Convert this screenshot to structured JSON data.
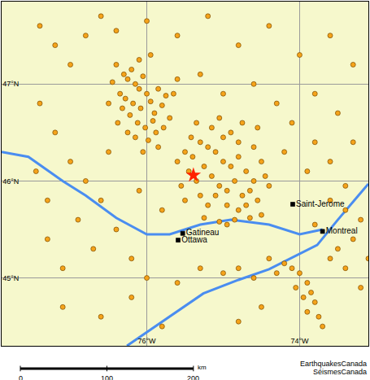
{
  "chart_data": {
    "type": "scatter",
    "xlim": [
      -77.9,
      -73.1
    ],
    "ylim": [
      44.3,
      47.85
    ],
    "xticks": [
      {
        "value": -76,
        "label": "76°W"
      },
      {
        "value": -74,
        "label": "74°W"
      }
    ],
    "yticks": [
      {
        "value": 45,
        "label": "45°N"
      },
      {
        "value": 46,
        "label": "46°N"
      },
      {
        "value": 47,
        "label": "47°N"
      }
    ],
    "grid": true,
    "series": [
      {
        "type": "line",
        "color": "#4a8df0",
        "x": [
          -77.9,
          -77.55,
          -77.1,
          -76.8,
          -76.4,
          -76.0,
          -75.7,
          -75.3,
          -74.9,
          -74.4,
          -74.0,
          -73.7
        ],
        "values": [
          46.3,
          46.25,
          46.0,
          45.85,
          45.62,
          45.45,
          45.45,
          45.55,
          45.6,
          45.55,
          45.45,
          45.5
        ]
      },
      {
        "type": "line",
        "color": "#4a8df0",
        "x": [
          -76.26,
          -75.8,
          -75.26,
          -74.8,
          -74.4,
          -73.77,
          -73.5,
          -73.23,
          -73.1
        ],
        "values": [
          44.3,
          44.55,
          44.84,
          44.98,
          45.09,
          45.34,
          45.6,
          45.85,
          45.97
        ]
      },
      {
        "type": "scatter",
        "marker": "circle",
        "color": "#f5a31a",
        "x": [
          -76.3,
          -76.25,
          -76.2,
          -76.15,
          -76.1,
          -76.05,
          -76.35,
          -76.28,
          -76.18,
          -76.08,
          -76.0,
          -75.95,
          -75.9,
          -75.85,
          -76.22,
          -76.12,
          -76.02,
          -75.92,
          -75.8,
          -75.75,
          -76.4,
          -76.45,
          -76.32,
          -76.25,
          -76.15,
          -75.98,
          -75.88,
          -75.7,
          -75.65,
          -75.6,
          -76.1,
          -75.95,
          -76.5,
          -76.38,
          -75.78,
          -76.05,
          -75.85,
          -75.5,
          -75.4,
          -75.3,
          -75.2,
          -75.1,
          -75.0,
          -74.9,
          -74.8,
          -74.7,
          -74.6,
          -75.45,
          -75.35,
          -75.25,
          -75.15,
          -75.05,
          -74.95,
          -74.85,
          -74.75,
          -74.65,
          -74.55,
          -75.55,
          -75.3,
          -75.2,
          -75.1,
          -74.95,
          -74.8,
          -74.7,
          -75.0,
          -74.9,
          -74.8,
          -74.6,
          -74.5,
          -74.45,
          -74.4,
          -75.15,
          -75.35,
          -75.05,
          -74.75,
          -74.55,
          -75.6,
          -75.5,
          -75.42,
          -74.85,
          -74.65,
          -74.5,
          -75.25,
          -75.05,
          -74.95,
          -74.1,
          -74.0,
          -73.9,
          -73.85,
          -73.8,
          -73.95,
          -74.05,
          -73.75,
          -73.7,
          -73.9,
          -74.2,
          -74.3,
          -73.6,
          -73.5,
          -73.4,
          -73.3,
          -73.2,
          -73.4,
          -73.6,
          -73.8,
          -74.4,
          -74.6,
          -74.8,
          -75.0,
          -75.3,
          -75.6,
          -74.5,
          -74.8,
          -73.2,
          -73.1,
          -77.4,
          -77.2,
          -77.0,
          -76.8,
          -76.6,
          -76.4,
          -76.0,
          -75.6,
          -75.2,
          -74.8,
          -74.4,
          -74.0,
          -73.6,
          -73.3,
          -77.4,
          -77.2,
          -77.0,
          -76.8,
          -76.6,
          -76.9,
          -77.3,
          -77.1,
          -76.7,
          -76.4,
          -76.2,
          -76.0,
          -75.8,
          -76.1,
          -76.5,
          -77.45,
          -77.3,
          -77.1,
          -76.6,
          -76.2,
          -75.8,
          -74.3,
          -74.1,
          -73.8,
          -73.5,
          -73.3,
          -73.6,
          -73.9,
          -74.2,
          -73.4,
          -73.8,
          -74.6,
          -75.0,
          -75.3
        ],
        "values": [
          47.1,
          47.05,
          47.15,
          47.0,
          46.95,
          47.08,
          46.9,
          46.85,
          46.8,
          46.75,
          46.9,
          46.82,
          46.7,
          46.95,
          46.68,
          46.6,
          46.55,
          46.62,
          46.78,
          46.88,
          47.2,
          47.02,
          46.75,
          46.5,
          46.45,
          46.42,
          46.5,
          46.65,
          46.9,
          47.05,
          47.25,
          47.3,
          46.8,
          46.6,
          46.55,
          46.3,
          46.35,
          46.3,
          46.25,
          46.4,
          46.35,
          46.3,
          46.2,
          46.15,
          46.25,
          46.1,
          46.0,
          46.1,
          46.0,
          46.15,
          46.05,
          45.95,
          45.9,
          46.0,
          45.85,
          45.9,
          45.8,
          45.95,
          45.85,
          45.75,
          45.85,
          45.75,
          45.7,
          45.75,
          46.45,
          46.5,
          46.4,
          46.35,
          46.2,
          46.05,
          45.95,
          46.55,
          46.6,
          46.65,
          46.6,
          46.55,
          46.2,
          45.8,
          46.45,
          45.6,
          45.62,
          45.65,
          45.62,
          45.58,
          45.55,
          45.1,
          45.05,
          44.95,
          44.85,
          44.75,
          44.8,
          44.9,
          44.6,
          44.5,
          44.65,
          45.15,
          45.05,
          45.2,
          45.3,
          45.1,
          45.4,
          45.6,
          45.7,
          45.8,
          45.55,
          45.2,
          45.0,
          45.1,
          45.05,
          45.1,
          44.95,
          44.7,
          44.55,
          44.9,
          45.2,
          47.6,
          47.4,
          47.2,
          47.5,
          47.7,
          47.55,
          47.65,
          47.5,
          47.7,
          47.4,
          47.6,
          47.3,
          47.5,
          47.2,
          46.8,
          46.5,
          46.2,
          46.0,
          45.8,
          45.6,
          45.4,
          45.1,
          45.3,
          45.5,
          45.2,
          45.0,
          45.7,
          45.9,
          46.3,
          46.1,
          45.8,
          44.7,
          44.6,
          44.8,
          44.5,
          46.8,
          46.6,
          46.9,
          46.7,
          46.4,
          46.2,
          46.1,
          46.3,
          45.95,
          46.4,
          47.0,
          46.9,
          47.1
        ]
      },
      {
        "type": "scatter",
        "marker": "square",
        "color": "#000000",
        "x": [
          -75.53,
          -75.59,
          -74.09,
          -73.7
        ],
        "values": [
          45.46,
          45.39,
          45.76,
          45.48
        ],
        "labels": [
          "Gatineau",
          "Ottawa",
          "Saint-Jerome",
          "Montreal"
        ]
      },
      {
        "type": "scatter",
        "marker": "star",
        "color": "#ff2200",
        "x": [
          -75.39
        ],
        "values": [
          46.06
        ]
      }
    ],
    "scale_bar": {
      "ticks": [
        0,
        100,
        200
      ],
      "unit": "km"
    },
    "credits": [
      "EarthquakesCanada",
      "SéismesCanada"
    ]
  }
}
